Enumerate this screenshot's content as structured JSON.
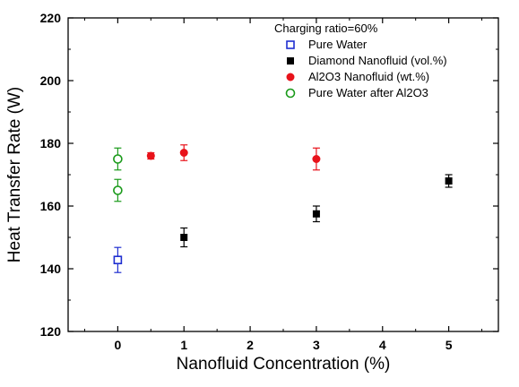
{
  "chart_data": {
    "type": "scatter",
    "xlabel": "Nanofluid Concentration (%)",
    "ylabel": "Heat Transfer Rate (W)",
    "xlim": [
      -0.75,
      5.75
    ],
    "ylim": [
      120,
      220
    ],
    "xticks": [
      0,
      1,
      2,
      3,
      4,
      5
    ],
    "yticks": [
      120,
      140,
      160,
      180,
      200,
      220
    ],
    "legend_title": "Charging ratio=60%",
    "legend_position": "top-right",
    "grid": false,
    "series": [
      {
        "name": "Pure Water",
        "marker": "square-open",
        "color": "#1f2fd0",
        "points": [
          {
            "x": 0,
            "y": 142.8,
            "err": 4
          }
        ]
      },
      {
        "name": "Diamond Nanofluid (vol.%)",
        "marker": "square-filled",
        "color": "#000000",
        "points": [
          {
            "x": 1,
            "y": 150.0,
            "err": 3
          },
          {
            "x": 3,
            "y": 157.5,
            "err": 2.5
          },
          {
            "x": 5,
            "y": 168.0,
            "err": 2
          }
        ]
      },
      {
        "name": "Al2O3 Nanofluid (wt.%)",
        "marker": "circle-filled",
        "color": "#e8121a",
        "points": [
          {
            "x": 0.5,
            "y": 176.0,
            "err": 1
          },
          {
            "x": 1,
            "y": 177.0,
            "err": 2.5
          },
          {
            "x": 3,
            "y": 175.0,
            "err": 3.5
          }
        ]
      },
      {
        "name": "Pure Water after Al2O3",
        "marker": "circle-open",
        "color": "#1a9a1a",
        "points": [
          {
            "x": 0,
            "y": 175.0,
            "err": 3.5
          },
          {
            "x": 0,
            "y": 165.0,
            "err": 3.5
          }
        ]
      }
    ]
  }
}
